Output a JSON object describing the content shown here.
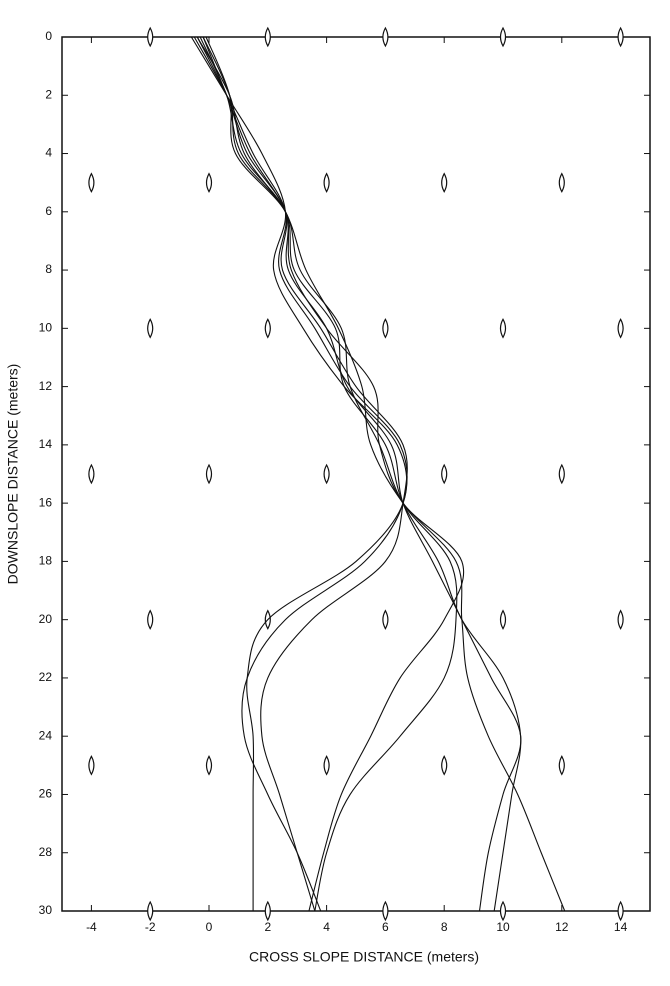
{
  "chart_data": {
    "type": "line",
    "x_label": "CROSS SLOPE DISTANCE (meters)",
    "y_label": "DOWNSLOPE DISTANCE (meters)",
    "xlim": [
      -5,
      15
    ],
    "ylim": [
      0,
      30
    ],
    "y_inverted": true,
    "xticks": [
      -4,
      -2,
      0,
      2,
      4,
      6,
      8,
      10,
      12,
      14
    ],
    "yticks": [
      0,
      2,
      4,
      6,
      8,
      10,
      12,
      14,
      16,
      18,
      20,
      22,
      24,
      26,
      28,
      30
    ],
    "grid": false,
    "color": "#111111",
    "obstacles": {
      "x": [
        -2,
        2,
        6,
        10,
        14,
        -4,
        0,
        4,
        8,
        12,
        -2,
        2,
        6,
        10,
        14,
        -4,
        0,
        4,
        8,
        12,
        -2,
        2,
        6,
        10,
        14,
        -4,
        0,
        4,
        8,
        12,
        -2,
        2,
        6,
        10,
        14
      ],
      "y": [
        0,
        0,
        0,
        0,
        0,
        5,
        5,
        5,
        5,
        5,
        10,
        10,
        10,
        10,
        10,
        15,
        15,
        15,
        15,
        15,
        20,
        20,
        20,
        20,
        20,
        25,
        25,
        25,
        25,
        25,
        30,
        30,
        30,
        30,
        30
      ]
    },
    "series": [
      {
        "x": [
          -0.6,
          0.6,
          1.8,
          2.6,
          2.2,
          3.2,
          4.6,
          6.4,
          6.6,
          5.0,
          2.0,
          1.3,
          1.5,
          1.5,
          1.5,
          1.5
        ],
        "values": [
          0,
          2,
          4,
          6,
          8,
          10,
          12,
          14,
          16,
          18,
          20,
          22,
          24,
          26,
          28,
          30
        ]
      },
      {
        "x": [
          -0.5,
          0.6,
          1.5,
          2.6,
          2.4,
          3.6,
          4.8,
          6.5,
          6.6,
          5.3,
          2.6,
          1.3,
          1.2,
          2.0,
          3.0,
          3.8
        ],
        "values": [
          0,
          2,
          4,
          6,
          8,
          10,
          12,
          14,
          16,
          18,
          20,
          22,
          24,
          26,
          28,
          30
        ]
      },
      {
        "x": [
          -0.4,
          0.6,
          1.3,
          2.6,
          2.5,
          3.8,
          5.0,
          6.6,
          6.6,
          6.0,
          3.5,
          2.0,
          1.8,
          2.4,
          3.0,
          3.6
        ],
        "values": [
          0,
          2,
          4,
          6,
          8,
          10,
          12,
          14,
          16,
          18,
          20,
          22,
          24,
          26,
          28,
          30
        ]
      },
      {
        "x": [
          -0.3,
          0.6,
          1.1,
          2.6,
          2.7,
          4.0,
          4.7,
          6.2,
          6.6,
          7.6,
          8.6,
          9.6,
          10.6,
          10.0,
          9.5,
          9.2
        ],
        "values": [
          0,
          2,
          4,
          6,
          8,
          10,
          12,
          14,
          16,
          18,
          20,
          22,
          24,
          26,
          28,
          30
        ]
      },
      {
        "x": [
          -0.2,
          0.7,
          1.0,
          2.6,
          2.9,
          4.3,
          4.6,
          6.0,
          6.6,
          7.8,
          8.6,
          10.0,
          10.6,
          10.3,
          10.0,
          9.7
        ],
        "values": [
          0,
          2,
          4,
          6,
          8,
          10,
          12,
          14,
          16,
          18,
          20,
          22,
          24,
          26,
          28,
          30
        ]
      },
      {
        "x": [
          -0.1,
          0.7,
          0.9,
          2.6,
          3.1,
          4.5,
          4.8,
          5.8,
          6.6,
          8.2,
          8.4,
          8.0,
          6.5,
          4.8,
          4.0,
          3.6
        ],
        "values": [
          0,
          2,
          4,
          6,
          8,
          10,
          12,
          14,
          16,
          18,
          20,
          22,
          24,
          26,
          28,
          30
        ]
      },
      {
        "x": [
          -0.4,
          0.7,
          1.2,
          2.6,
          3.3,
          4.4,
          5.2,
          5.5,
          6.6,
          8.4,
          8.6,
          8.8,
          9.5,
          10.5,
          11.3,
          12.1
        ],
        "values": [
          0,
          2,
          4,
          6,
          8,
          10,
          12,
          14,
          16,
          18,
          20,
          22,
          24,
          26,
          28,
          30
        ]
      },
      {
        "x": [
          -0.2,
          0.6,
          1.4,
          2.6,
          2.8,
          4.0,
          5.6,
          5.8,
          6.6,
          8.6,
          8.0,
          6.5,
          5.5,
          4.5,
          3.9,
          3.4
        ],
        "values": [
          0,
          2,
          4,
          6,
          8,
          10,
          12,
          14,
          16,
          18,
          20,
          22,
          24,
          26,
          28,
          30
        ]
      }
    ]
  }
}
